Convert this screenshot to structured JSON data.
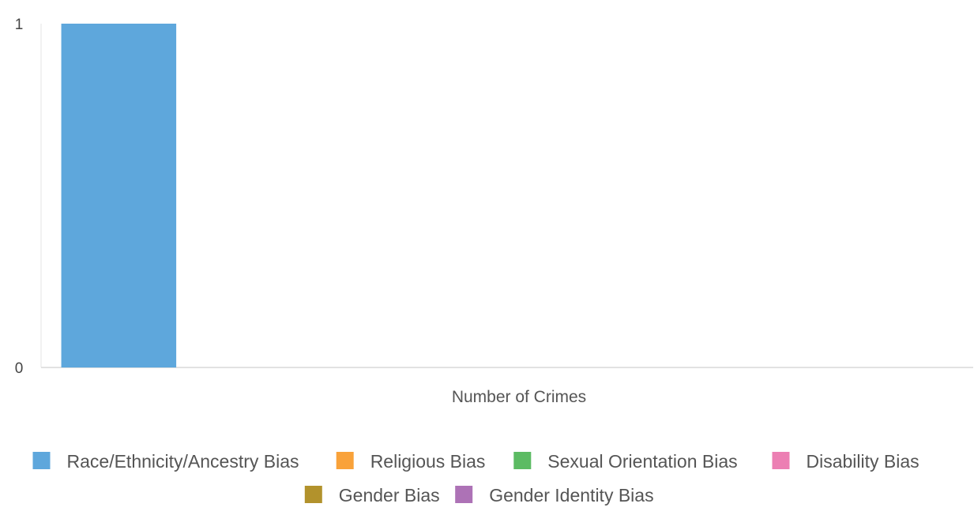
{
  "chart_data": {
    "type": "bar",
    "title": "",
    "xlabel": "Number of Crimes",
    "ylabel": "",
    "ylim": [
      0,
      1
    ],
    "y_ticks": [
      "0",
      "1"
    ],
    "grid": false,
    "legend_position": "bottom",
    "categories": [
      "Number of Crimes"
    ],
    "series": [
      {
        "name": "Race/Ethnicity/Ancestry Bias",
        "color": "#5ea7dc",
        "values": [
          1
        ]
      },
      {
        "name": "Religious Bias",
        "color": "#f9a23a",
        "values": [
          0
        ]
      },
      {
        "name": "Sexual Orientation Bias",
        "color": "#5cbb63",
        "values": [
          0
        ]
      },
      {
        "name": "Disability Bias",
        "color": "#ec7fb3",
        "values": [
          0
        ]
      },
      {
        "name": "Gender Bias",
        "color": "#b2922c",
        "values": [
          0
        ]
      },
      {
        "name": "Gender Identity Bias",
        "color": "#ad72b6",
        "values": [
          0
        ]
      }
    ]
  }
}
